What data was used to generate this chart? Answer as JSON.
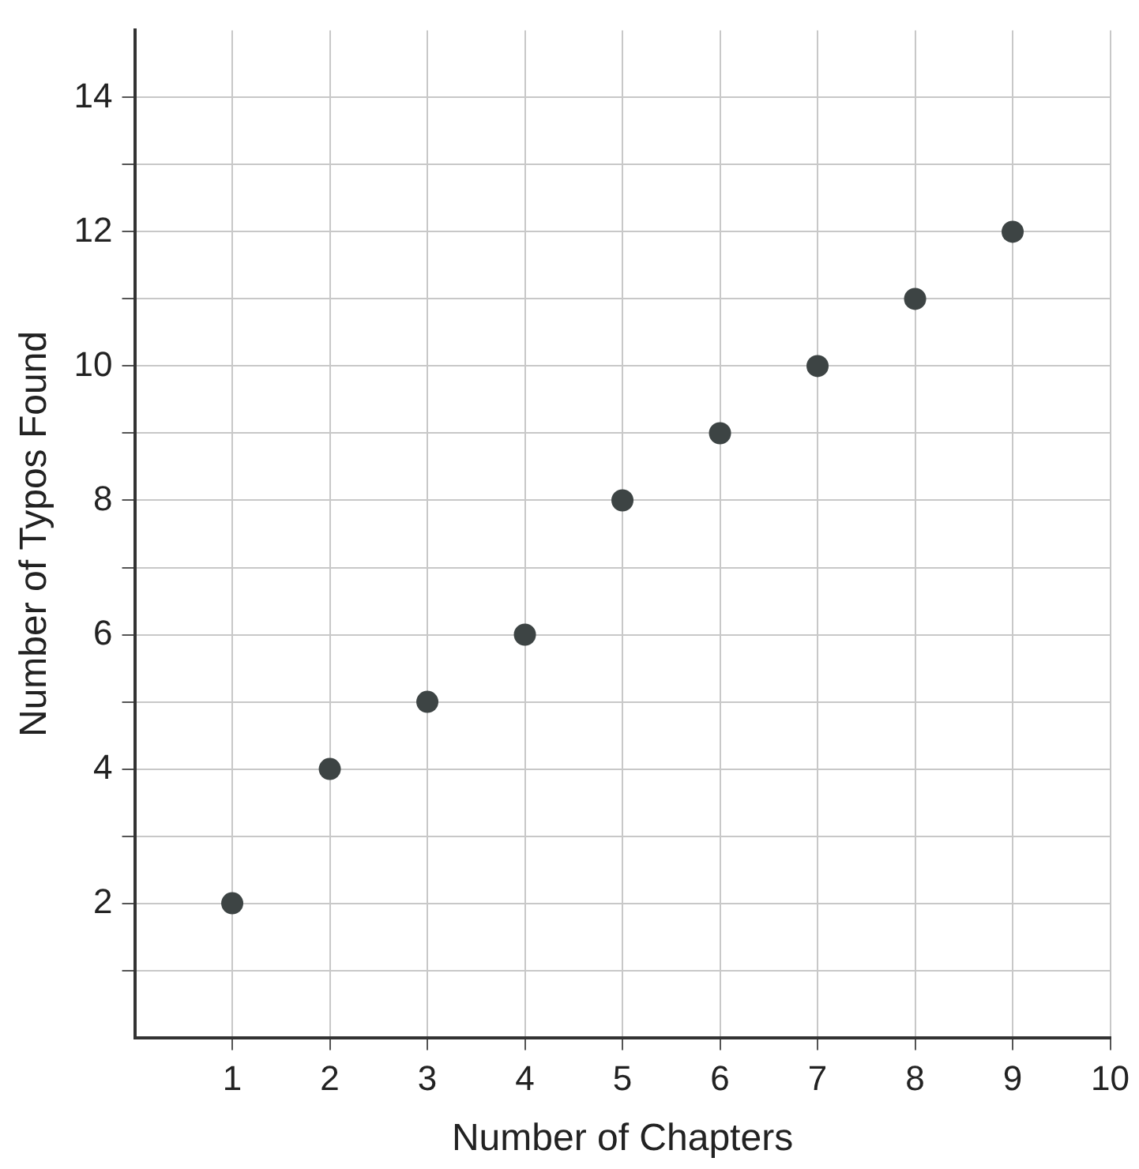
{
  "chart_data": {
    "type": "scatter",
    "xlabel": "Number of Chapters",
    "ylabel": "Number of Typos Found",
    "x": [
      1,
      2,
      3,
      4,
      5,
      6,
      7,
      8,
      9
    ],
    "series": [
      {
        "color": "#3d4444",
        "values": [
          2,
          4,
          5,
          6,
          8,
          9,
          10,
          11,
          12
        ]
      }
    ],
    "xlim": [
      0,
      10
    ],
    "xticks": [
      1,
      2,
      3,
      4,
      5,
      6,
      7,
      8,
      9,
      10
    ],
    "ylim": [
      0,
      15
    ],
    "yticks": [
      {
        "value": 1,
        "label": null
      },
      2,
      {
        "value": 3,
        "label": null
      },
      4,
      {
        "value": 5,
        "label": null
      },
      6,
      {
        "value": 7,
        "label": null
      },
      8,
      {
        "value": 9,
        "label": null
      },
      10,
      {
        "value": 11,
        "label": null
      },
      12,
      {
        "value": 13,
        "label": null
      },
      14
    ],
    "grid": true,
    "legend": false,
    "marker": "circle"
  }
}
